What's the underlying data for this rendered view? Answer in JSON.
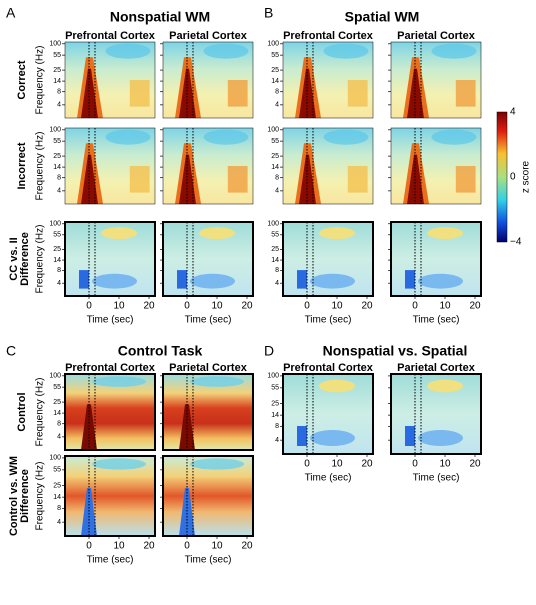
{
  "panels": [
    {
      "label": "A",
      "title": "Nonspatial WM",
      "columns": [
        "Prefrontal Cortex",
        "Parietal Cortex"
      ],
      "rows": [
        [
          "Correct"
        ],
        [
          "Incorrect"
        ],
        [
          "CC vs. II",
          "Difference"
        ]
      ]
    },
    {
      "label": "B",
      "title": "Spatial WM",
      "columns": [
        "Prefrontal Cortex",
        "Parietal Cortex"
      ]
    },
    {
      "label": "C",
      "title": "Control Task",
      "columns": [
        "Prefrontal Cortex",
        "Parietal Cortex"
      ],
      "rows": [
        [
          "Control"
        ],
        [
          "Control vs. WM",
          "Difference"
        ]
      ]
    },
    {
      "label": "D",
      "title": "Nonspatial vs. Spatial",
      "columns": [
        "Prefrontal Cortex",
        "Parietal Cortex"
      ]
    }
  ],
  "y_axis_label": "Frequency (Hz)",
  "y_ticks": [
    "100",
    "55",
    "25",
    "14",
    "8",
    "4"
  ],
  "x_axis_label": "Time (sec)",
  "x_ticks": [
    "0",
    "10",
    "20"
  ],
  "colorbar": {
    "label": "z score",
    "ticks": [
      "4",
      "0",
      "−4"
    ]
  }
}
